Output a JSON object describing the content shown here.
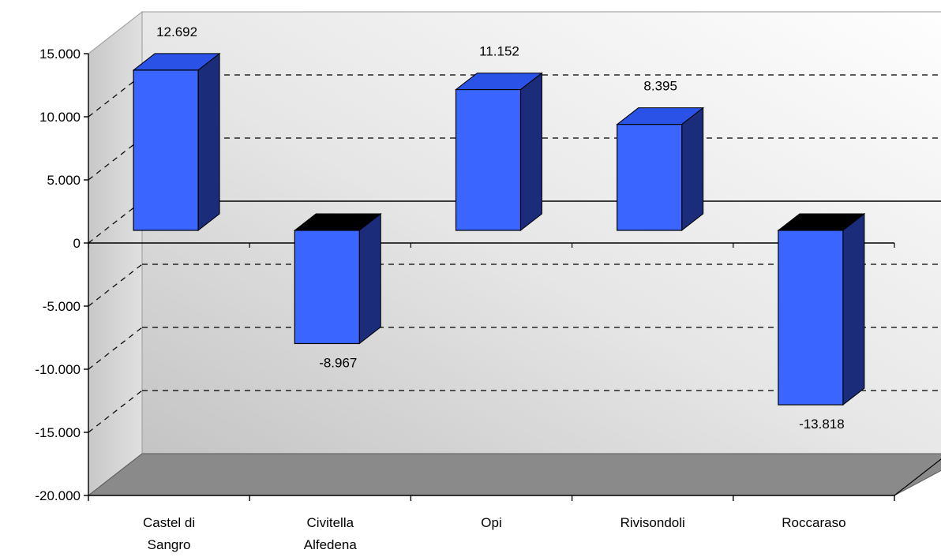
{
  "chart_data": {
    "type": "bar",
    "categories": [
      [
        "Castel di",
        "Sangro"
      ],
      [
        "Civitella",
        "Alfedena"
      ],
      [
        "Opi"
      ],
      [
        "Rivisondoli"
      ],
      [
        "Roccaraso"
      ]
    ],
    "values": [
      12692,
      -8967,
      11152,
      8395,
      -13818
    ],
    "data_labels": [
      "12.692",
      "-8.967",
      "11.152",
      "8.395",
      "-13.818"
    ],
    "y_ticks": [
      15000,
      10000,
      5000,
      0,
      -5000,
      -10000,
      -15000,
      -20000
    ],
    "y_tick_labels": [
      "15.000",
      "10.000",
      "5.000",
      "0",
      "-5.000",
      "-10.000",
      "-15.000",
      "-20.000"
    ],
    "ylim": [
      -20000,
      15000
    ],
    "title": "",
    "xlabel": "",
    "ylabel": "",
    "grid": true,
    "grid_style": "dashed",
    "legend": false,
    "three_d": true,
    "colors": {
      "bar_front": "#3a66ff",
      "bar_side": "#1a2c7a",
      "bar_top": "#2a52e6",
      "bar_top_negative": "#000000",
      "floor": "#8a8a8a",
      "wall_light": "#ffffff",
      "wall_dark": "#b8b8b8"
    }
  }
}
